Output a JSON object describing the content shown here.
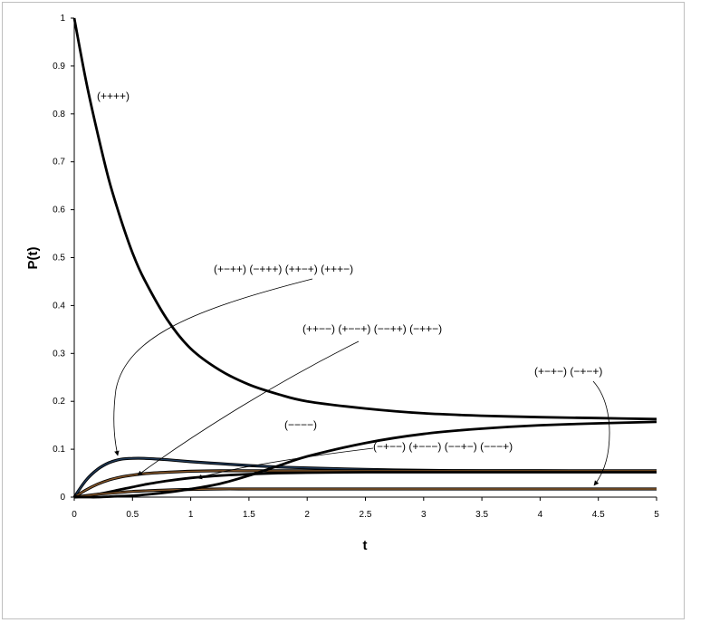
{
  "chart_data": {
    "type": "line",
    "title": "",
    "xlabel": "t",
    "ylabel": "P(t)",
    "xlim": [
      0,
      5
    ],
    "ylim": [
      0,
      1
    ],
    "xticks": [
      "0",
      "0.5",
      "1",
      "1.5",
      "2",
      "2.5",
      "3",
      "3.5",
      "4",
      "4.5",
      "5"
    ],
    "yticks": [
      "0",
      "0.1",
      "0.2",
      "0.3",
      "0.4",
      "0.5",
      "0.6",
      "0.7",
      "0.8",
      "0.9",
      "1"
    ],
    "grid": false,
    "legend": "none",
    "x": [
      0,
      0.1,
      0.2,
      0.3,
      0.4,
      0.5,
      0.6,
      0.8,
      1.0,
      1.25,
      1.5,
      1.75,
      2.0,
      2.5,
      3.0,
      3.5,
      4.0,
      4.5,
      5.0
    ],
    "series": [
      {
        "values": [
          1.0,
          0.87,
          0.76,
          0.66,
          0.58,
          0.51,
          0.455,
          0.37,
          0.31,
          0.265,
          0.235,
          0.215,
          0.2,
          0.185,
          0.175,
          0.17,
          0.167,
          0.165,
          0.163
        ],
        "color": "#000000"
      },
      {
        "values": [
          0.0,
          0.035,
          0.058,
          0.072,
          0.079,
          0.081,
          0.081,
          0.078,
          0.074,
          0.07,
          0.066,
          0.063,
          0.061,
          0.058,
          0.056,
          0.055,
          0.055,
          0.054,
          0.054
        ],
        "color": "#1f3a5a"
      },
      {
        "values": [
          0.0,
          0.015,
          0.027,
          0.036,
          0.042,
          0.046,
          0.049,
          0.052,
          0.054,
          0.055,
          0.055,
          0.055,
          0.055,
          0.055,
          0.055,
          0.055,
          0.055,
          0.055,
          0.055
        ],
        "color": "#8b5a2b"
      },
      {
        "values": [
          0.0,
          0.002,
          0.006,
          0.011,
          0.016,
          0.021,
          0.026,
          0.034,
          0.04,
          0.045,
          0.048,
          0.05,
          0.051,
          0.052,
          0.052,
          0.052,
          0.052,
          0.052,
          0.052
        ],
        "color": "#000000"
      },
      {
        "values": [
          0.0,
          0.003,
          0.006,
          0.008,
          0.01,
          0.012,
          0.013,
          0.015,
          0.016,
          0.017,
          0.017,
          0.017,
          0.017,
          0.017,
          0.017,
          0.017,
          0.017,
          0.017,
          0.017
        ],
        "color": "#8b5a2b"
      },
      {
        "values": [
          0.0,
          0.0,
          0.0,
          0.001,
          0.002,
          0.003,
          0.005,
          0.01,
          0.017,
          0.028,
          0.045,
          0.065,
          0.085,
          0.113,
          0.132,
          0.143,
          0.15,
          0.154,
          0.157
        ],
        "color": "#000000"
      }
    ],
    "annotations": [
      {
        "text": "(++++)"
      },
      {
        "text": "(+−++) (−+++) (++−+) (+++−)"
      },
      {
        "text": "(++−−) (+−−+) (−−++) (−++−)"
      },
      {
        "text": "(+−+−) (−+−+)"
      },
      {
        "text": "(−−−−)"
      },
      {
        "text": "(−+−−) (+−−−) (−−+−) (−−−+)"
      }
    ]
  }
}
